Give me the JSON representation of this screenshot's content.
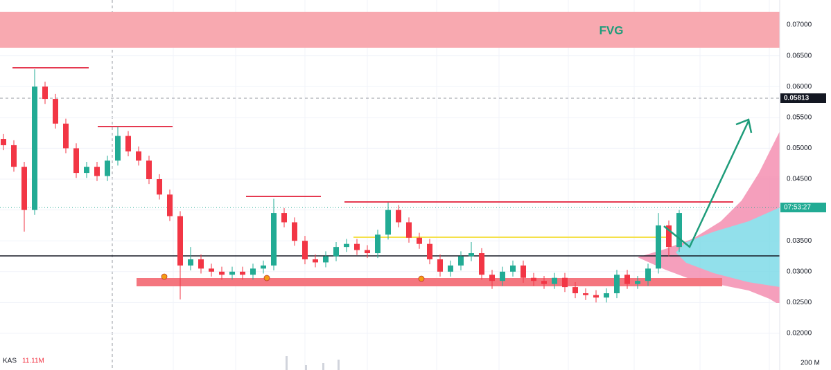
{
  "chart_data": {
    "type": "candlestick",
    "up_color": "#22ab94",
    "down_color": "#f23645",
    "ylim": [
      0.01686,
      0.07404
    ],
    "yticks": [
      {
        "value": 0.02,
        "label": "0.02000"
      },
      {
        "value": 0.025,
        "label": "0.02500"
      },
      {
        "value": 0.03,
        "label": "0.03000"
      },
      {
        "value": 0.035,
        "label": "0.03500"
      },
      {
        "value": 0.04,
        "label": "0.04000"
      },
      {
        "value": 0.045,
        "label": "0.04500"
      },
      {
        "value": 0.05,
        "label": "0.05000"
      },
      {
        "value": 0.055,
        "label": "0.05500"
      },
      {
        "value": 0.06,
        "label": "0.06000"
      },
      {
        "value": 0.065,
        "label": "0.06500"
      },
      {
        "value": 0.07,
        "label": "0.07000"
      }
    ],
    "crosshair_price": 0.05813,
    "countdown": "07:53:27",
    "zone_label": "FVG",
    "volume_symbol": "KAS",
    "volume_value": "11.11M",
    "volume_scale": "200 M",
    "open": [
      0.0515,
      0.0505,
      0.047,
      0.04,
      0.06,
      0.058,
      0.054,
      0.05,
      0.046,
      0.047,
      0.0455,
      0.048,
      0.052,
      0.0495,
      0.048,
      0.045,
      0.0425,
      0.039,
      0.031,
      0.032,
      0.0305,
      0.03,
      0.0295,
      0.03,
      0.0295,
      0.0305,
      0.031,
      0.0395,
      0.038,
      0.035,
      0.032,
      0.0315,
      0.0325,
      0.034,
      0.0345,
      0.0335,
      0.033,
      0.036,
      0.04,
      0.038,
      0.0355,
      0.0345,
      0.032,
      0.03,
      0.031,
      0.0325,
      0.033,
      0.0295,
      0.0285,
      0.03,
      0.031,
      0.029,
      0.0285,
      0.028,
      0.029,
      0.0275,
      0.0265,
      0.0262,
      0.0258,
      0.0265,
      0.0295,
      0.028,
      0.0285,
      0.0305,
      0.0375,
      0.034
    ],
    "high": [
      0.0523,
      0.0513,
      0.0478,
      0.0628,
      0.0608,
      0.0588,
      0.0548,
      0.0508,
      0.0478,
      0.0478,
      0.0488,
      0.0535,
      0.0528,
      0.0503,
      0.0488,
      0.0458,
      0.0433,
      0.0398,
      0.034,
      0.0328,
      0.0313,
      0.0308,
      0.0308,
      0.0308,
      0.0313,
      0.0318,
      0.0418,
      0.0403,
      0.0388,
      0.0358,
      0.0328,
      0.0333,
      0.0348,
      0.0353,
      0.0353,
      0.0343,
      0.0368,
      0.0412,
      0.0408,
      0.0388,
      0.0363,
      0.0353,
      0.0328,
      0.0318,
      0.0333,
      0.0348,
      0.0338,
      0.0303,
      0.0308,
      0.0318,
      0.0318,
      0.0298,
      0.0293,
      0.0298,
      0.0298,
      0.0283,
      0.0273,
      0.027,
      0.0273,
      0.0303,
      0.0303,
      0.0293,
      0.0313,
      0.0395,
      0.0383,
      0.04
    ],
    "low": [
      0.0497,
      0.0462,
      0.0365,
      0.0392,
      0.0572,
      0.0532,
      0.0492,
      0.0452,
      0.0452,
      0.0447,
      0.0447,
      0.0472,
      0.0487,
      0.0472,
      0.0442,
      0.0417,
      0.0382,
      0.0255,
      0.0302,
      0.0297,
      0.0292,
      0.0287,
      0.0287,
      0.0287,
      0.0287,
      0.0297,
      0.0302,
      0.0372,
      0.0342,
      0.0312,
      0.0307,
      0.0307,
      0.0317,
      0.0332,
      0.0327,
      0.0322,
      0.0322,
      0.0352,
      0.0372,
      0.0347,
      0.0337,
      0.0312,
      0.0292,
      0.0292,
      0.0302,
      0.0317,
      0.0287,
      0.0272,
      0.0277,
      0.0292,
      0.0282,
      0.0277,
      0.0272,
      0.0272,
      0.0267,
      0.0257,
      0.0254,
      0.025,
      0.025,
      0.0257,
      0.0272,
      0.0272,
      0.0277,
      0.0297,
      0.0325,
      0.0332
    ],
    "close": [
      0.0505,
      0.047,
      0.04,
      0.06,
      0.058,
      0.054,
      0.05,
      0.046,
      0.047,
      0.0455,
      0.048,
      0.052,
      0.0495,
      0.048,
      0.045,
      0.0425,
      0.039,
      0.031,
      0.032,
      0.0305,
      0.03,
      0.0295,
      0.03,
      0.0295,
      0.0305,
      0.031,
      0.0395,
      0.038,
      0.035,
      0.032,
      0.0315,
      0.0325,
      0.034,
      0.0345,
      0.0335,
      0.033,
      0.036,
      0.04,
      0.038,
      0.0355,
      0.0345,
      0.032,
      0.03,
      0.031,
      0.0325,
      0.033,
      0.0295,
      0.0285,
      0.03,
      0.031,
      0.029,
      0.0285,
      0.028,
      0.029,
      0.0275,
      0.0265,
      0.0262,
      0.0258,
      0.0265,
      0.0295,
      0.028,
      0.0285,
      0.0305,
      0.0375,
      0.034,
      0.0395
    ]
  }
}
